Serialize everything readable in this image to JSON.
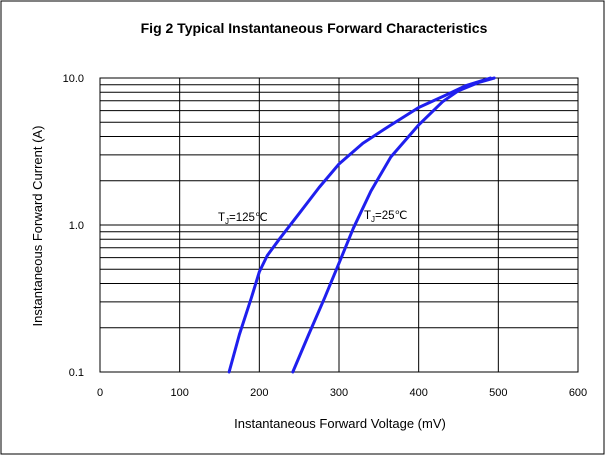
{
  "chart_data": {
    "type": "line",
    "title": "Fig 2 Typical Instantaneous Forward Characteristics",
    "xlabel": "Instantaneous Forward Voltage (mV)",
    "ylabel": "Instantaneous Forward Current (A)",
    "xlim": [
      0,
      600
    ],
    "ylim": [
      0.1,
      10
    ],
    "y_scale": "log",
    "grid": true,
    "x_ticks": [
      0,
      100,
      200,
      300,
      400,
      500,
      600
    ],
    "x_tick_labels": [
      "0",
      "100",
      "200",
      "300",
      "400",
      "500",
      "600"
    ],
    "y_ticks": [
      0.1,
      1,
      10
    ],
    "y_tick_labels": [
      "0.1",
      "1.0",
      "10.0"
    ],
    "series_color": "#1f1fee",
    "series": [
      {
        "name": "TJ=125℃",
        "x": [
          162,
          175,
          190,
          200,
          210,
          225,
          250,
          275,
          300,
          330,
          360,
          400,
          435,
          460,
          490
        ],
        "y": [
          0.1,
          0.18,
          0.32,
          0.48,
          0.62,
          0.8,
          1.2,
          1.8,
          2.6,
          3.6,
          4.6,
          6.3,
          7.7,
          8.9,
          10.0
        ]
      },
      {
        "name": "TJ=25℃",
        "x": [
          242,
          262,
          282,
          300,
          318,
          340,
          365,
          400,
          430,
          450,
          475,
          495
        ],
        "y": [
          0.1,
          0.18,
          0.32,
          0.55,
          0.95,
          1.7,
          2.9,
          4.8,
          6.9,
          8.2,
          9.3,
          10.0
        ]
      }
    ],
    "annotations": [
      {
        "base": "T",
        "sub": "J",
        "rest": "=125℃"
      },
      {
        "base": "T",
        "sub": "J",
        "rest": "=25℃"
      }
    ]
  }
}
